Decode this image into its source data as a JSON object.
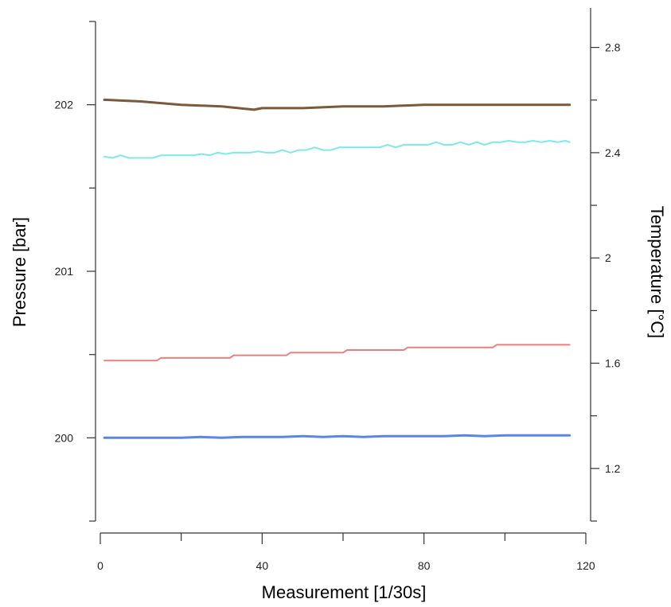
{
  "chart_data": {
    "type": "line",
    "title": "",
    "xlabel": "Measurement [1/30s]",
    "ylabel_left": "Pressure [bar]",
    "ylabel_right": "Temperature [°C]",
    "xlim": [
      0,
      120
    ],
    "ylim_left": [
      199.5,
      202.5
    ],
    "ylim_right": [
      1.0,
      2.95
    ],
    "x_ticks": [
      0,
      40,
      80,
      120
    ],
    "x_ticks_minor": [
      20,
      60,
      100
    ],
    "y_left_ticks": [
      200,
      201,
      202
    ],
    "y_left_ticks_minor": [
      199.5,
      200.5,
      201.5,
      202.5
    ],
    "y_right_ticks": [
      1.2,
      1.6,
      2,
      2.4,
      2.8
    ],
    "y_right_ticks_minor": [
      1.0,
      1.4,
      1.8,
      2.2,
      2.6
    ],
    "grid": false,
    "series": [
      {
        "axis": "left",
        "color": "#7a5a3a",
        "width": 3,
        "x": [
          1,
          10,
          20,
          30,
          38,
          40,
          50,
          60,
          70,
          80,
          90,
          100,
          110,
          116
        ],
        "y": [
          202.03,
          202.02,
          202.0,
          201.99,
          201.97,
          201.98,
          201.98,
          201.99,
          201.99,
          202.0,
          202.0,
          202.0,
          202.0,
          202.0
        ]
      },
      {
        "axis": "right",
        "color": "#7ee8ec",
        "width": 2,
        "x": [
          1,
          3,
          5,
          7,
          9,
          11,
          13,
          15,
          17,
          19,
          21,
          23,
          25,
          27,
          29,
          31,
          33,
          35,
          37,
          39,
          41,
          43,
          45,
          47,
          49,
          51,
          53,
          55,
          57,
          59,
          61,
          63,
          65,
          67,
          69,
          71,
          73,
          75,
          77,
          79,
          81,
          83,
          85,
          87,
          89,
          91,
          93,
          95,
          97,
          99,
          101,
          103,
          105,
          107,
          109,
          111,
          113,
          115,
          116
        ],
        "y": [
          2.385,
          2.38,
          2.39,
          2.38,
          2.38,
          2.38,
          2.38,
          2.39,
          2.39,
          2.39,
          2.39,
          2.39,
          2.395,
          2.39,
          2.4,
          2.395,
          2.4,
          2.4,
          2.4,
          2.405,
          2.4,
          2.4,
          2.41,
          2.4,
          2.41,
          2.41,
          2.42,
          2.41,
          2.41,
          2.42,
          2.42,
          2.42,
          2.42,
          2.42,
          2.42,
          2.43,
          2.42,
          2.43,
          2.43,
          2.43,
          2.43,
          2.44,
          2.43,
          2.43,
          2.44,
          2.43,
          2.44,
          2.43,
          2.44,
          2.44,
          2.445,
          2.44,
          2.44,
          2.445,
          2.44,
          2.445,
          2.44,
          2.445,
          2.44
        ]
      },
      {
        "axis": "right",
        "color": "#e88080",
        "width": 2,
        "x": [
          1,
          14,
          15,
          32,
          33,
          46,
          47,
          60,
          61,
          75,
          76,
          97,
          98,
          116
        ],
        "y": [
          1.61,
          1.61,
          1.62,
          1.62,
          1.63,
          1.63,
          1.64,
          1.64,
          1.65,
          1.65,
          1.66,
          1.66,
          1.67,
          1.67
        ]
      },
      {
        "axis": "left",
        "color": "#5a86e8",
        "width": 3,
        "x": [
          1,
          5,
          10,
          15,
          20,
          25,
          30,
          35,
          40,
          45,
          50,
          55,
          60,
          65,
          70,
          75,
          80,
          85,
          90,
          95,
          100,
          105,
          110,
          116
        ],
        "y": [
          200.0,
          200.0,
          200.0,
          200.0,
          200.0,
          200.005,
          200.0,
          200.005,
          200.005,
          200.005,
          200.01,
          200.005,
          200.01,
          200.005,
          200.01,
          200.01,
          200.01,
          200.01,
          200.015,
          200.01,
          200.015,
          200.015,
          200.015,
          200.015
        ]
      }
    ]
  }
}
